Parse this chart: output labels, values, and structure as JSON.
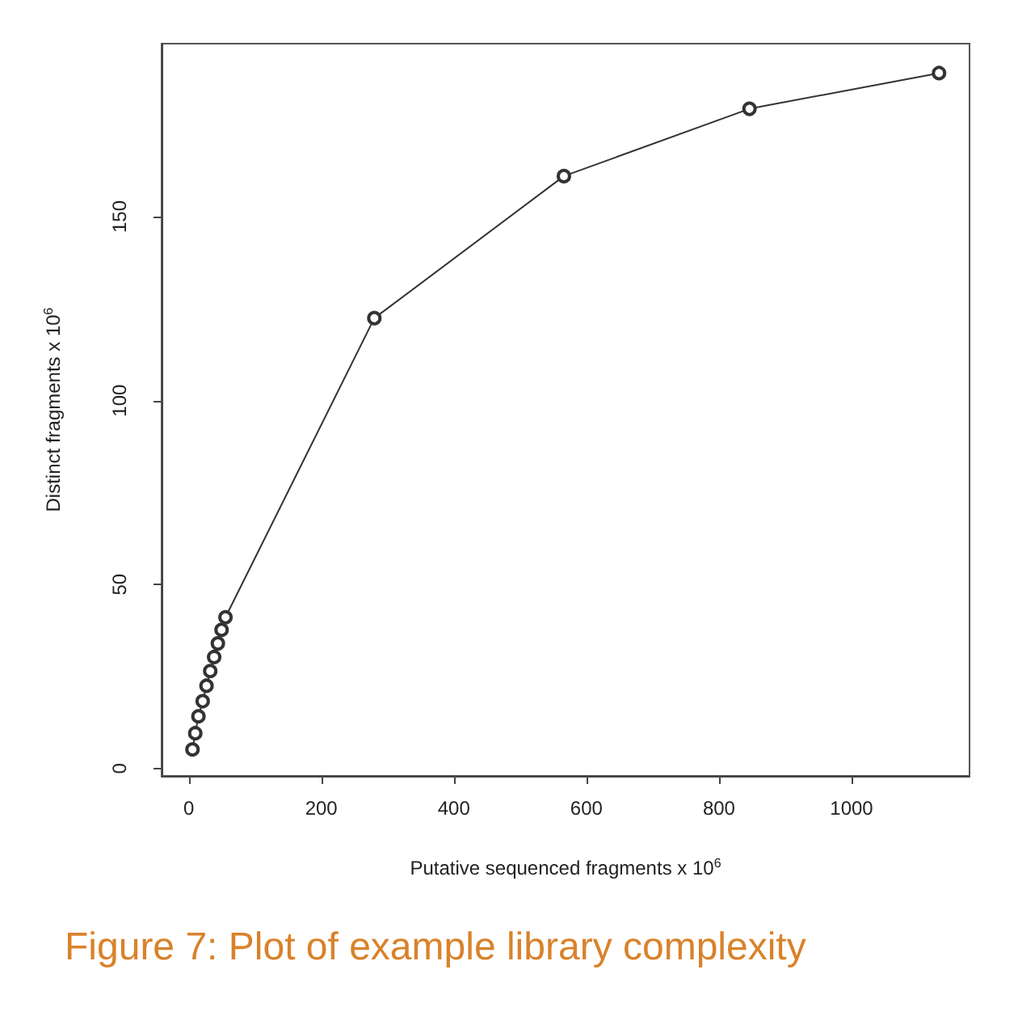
{
  "chart_data": {
    "type": "line",
    "title": "Figure 7: Plot of example library complexity",
    "xlabel": "Putative sequenced fragments x 10$^{6}$",
    "ylabel": "Distinct fragments x 10$^{6}$",
    "x": [
      5.6,
      9.8,
      14.6,
      21,
      26.8,
      32.4,
      38.3,
      43.9,
      49.5,
      55.4,
      280,
      566,
      846,
      1132
    ],
    "series": [
      {
        "color": "#333333",
        "values": [
          5.2,
          9.6,
          14.2,
          18.3,
          22.5,
          26.5,
          30.3,
          34,
          37.7,
          41.1,
          122.4,
          161,
          179.3,
          189
        ]
      }
    ],
    "xlim": [
      -41,
      1178
    ],
    "xticks": [
      0,
      200,
      400,
      600,
      800,
      1000
    ],
    "ylim": [
      -2,
      197
    ],
    "yticks": [
      0,
      50,
      100,
      150
    ],
    "marker": "circle",
    "line_style": "solid"
  }
}
